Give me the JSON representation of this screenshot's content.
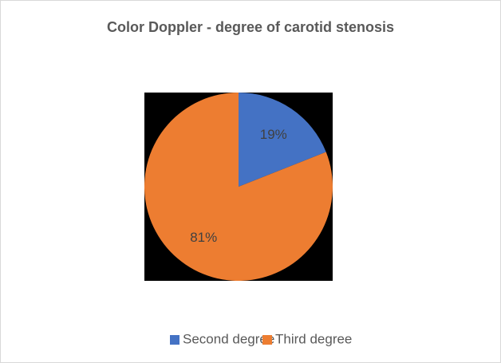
{
  "chart_data": {
    "type": "pie",
    "title": "Color Doppler - degree of carotid stenosis",
    "categories": [
      "Second degree",
      "Third degree"
    ],
    "values": [
      19,
      81
    ],
    "value_labels": [
      "19%",
      "81%"
    ],
    "colors": [
      "#4472c4",
      "#ed7d31"
    ],
    "legend": "bottom"
  }
}
